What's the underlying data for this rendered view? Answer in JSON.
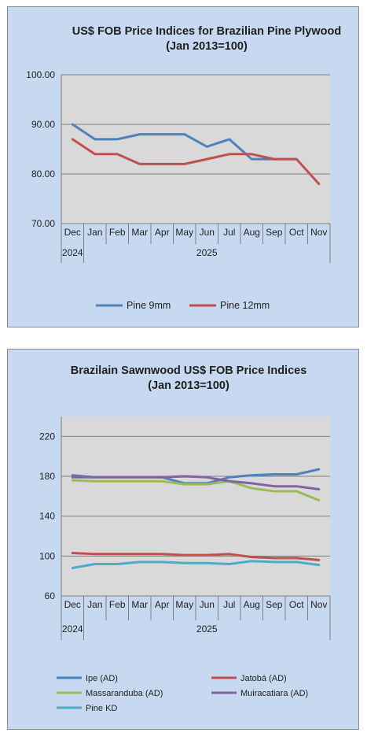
{
  "chart_data": [
    {
      "type": "line",
      "title": "US$ FOB Price Indices for Brazilian  Pine Plywood",
      "subtitle": "(Jan 2013=100)",
      "categories": [
        "Dec",
        "Jan",
        "Feb",
        "Mar",
        "Apr",
        "May",
        "Jun",
        "Jul",
        "Aug",
        "Sep",
        "Oct",
        "Nov"
      ],
      "year_labels": [
        "2024",
        "2025"
      ],
      "year_spans": [
        [
          0,
          0
        ],
        [
          1,
          11
        ]
      ],
      "ylim": [
        70,
        100
      ],
      "yticks": [
        70,
        80,
        90,
        100
      ],
      "ytick_labels": [
        "70.00",
        "80.00",
        "90.00",
        "100.00"
      ],
      "grid": true,
      "legend_position": "bottom",
      "series": [
        {
          "name": "Pine 9mm",
          "color": "#4f81bd",
          "values": [
            90,
            87,
            87,
            88,
            88,
            88,
            85.5,
            87,
            83,
            83,
            83,
            null
          ]
        },
        {
          "name": "Pine 12mm",
          "color": "#c0504d",
          "values": [
            87,
            84,
            84,
            82,
            82,
            82,
            83,
            84,
            84,
            83,
            83,
            78
          ]
        }
      ]
    },
    {
      "type": "line",
      "title": "Brazilain Sawnwood US$ FOB Price Indices",
      "subtitle": "(Jan 2013=100)",
      "categories": [
        "Dec",
        "Jan",
        "Feb",
        "Mar",
        "Apr",
        "May",
        "Jun",
        "Jul",
        "Aug",
        "Sep",
        "Oct",
        "Nov"
      ],
      "year_labels": [
        "2024",
        "2025"
      ],
      "year_spans": [
        [
          0,
          0
        ],
        [
          1,
          11
        ]
      ],
      "ylim": [
        60,
        240
      ],
      "yticks": [
        60,
        100,
        140,
        180,
        220
      ],
      "ytick_labels": [
        "60",
        "100",
        "140",
        "180",
        "220"
      ],
      "grid": true,
      "legend_position": "bottom",
      "series": [
        {
          "name": "Ipe (AD)",
          "color": "#4f81bd",
          "values": [
            181,
            179,
            179,
            179,
            179,
            173,
            173,
            179,
            181,
            182,
            182,
            187
          ]
        },
        {
          "name": "Jatobá (AD)",
          "color": "#c0504d",
          "values": [
            103,
            102,
            102,
            102,
            102,
            101,
            101,
            102,
            99,
            98,
            98,
            96
          ]
        },
        {
          "name": "Massaranduba (AD)",
          "color": "#9bbb59",
          "values": [
            176,
            175,
            175,
            175,
            175,
            172,
            172,
            175,
            168,
            165,
            165,
            156
          ]
        },
        {
          "name": "Muiracatiara (AD)",
          "color": "#8064a2",
          "values": [
            179,
            179,
            179,
            179,
            179,
            180,
            179,
            175,
            173,
            170,
            170,
            167
          ]
        },
        {
          "name": "Pine KD",
          "color": "#4bacc6",
          "values": [
            88,
            92,
            92,
            94,
            94,
            93,
            93,
            92,
            95,
            94,
            94,
            91
          ]
        }
      ]
    }
  ]
}
